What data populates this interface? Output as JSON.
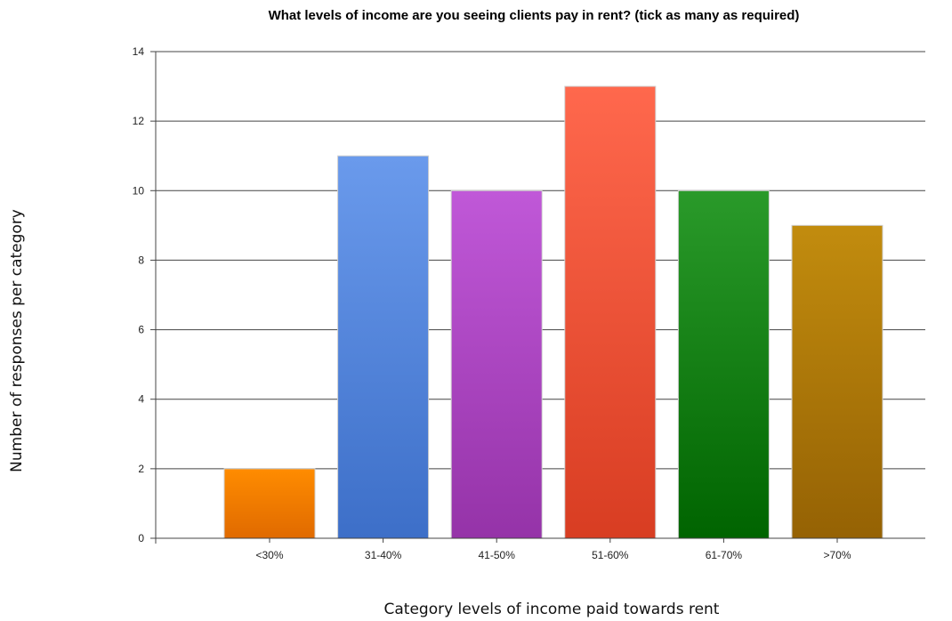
{
  "chart_data": {
    "type": "bar",
    "title": "What levels of income are you seeing clients pay in rent? (tick as many as required)",
    "xlabel": "Category levels of income paid towards rent",
    "ylabel": "Number of responses per category",
    "categories": [
      "<30%",
      "31-40%",
      "41-50%",
      "51-60%",
      "61-70%",
      ">70%"
    ],
    "values": [
      2,
      11,
      10,
      13,
      10,
      9
    ],
    "ylim": [
      0,
      14
    ],
    "yticks": [
      0,
      2,
      4,
      6,
      8,
      10,
      12,
      14
    ],
    "grid": true,
    "legend": "none",
    "colors": [
      [
        "#ff8c00",
        "#e06a00"
      ],
      [
        "#6a9aec",
        "#3d6fc8"
      ],
      [
        "#c058d8",
        "#9533a8"
      ],
      [
        "#ff684d",
        "#d83d22"
      ],
      [
        "#2a9a2a",
        "#006400"
      ],
      [
        "#c28c0e",
        "#956204"
      ]
    ]
  }
}
